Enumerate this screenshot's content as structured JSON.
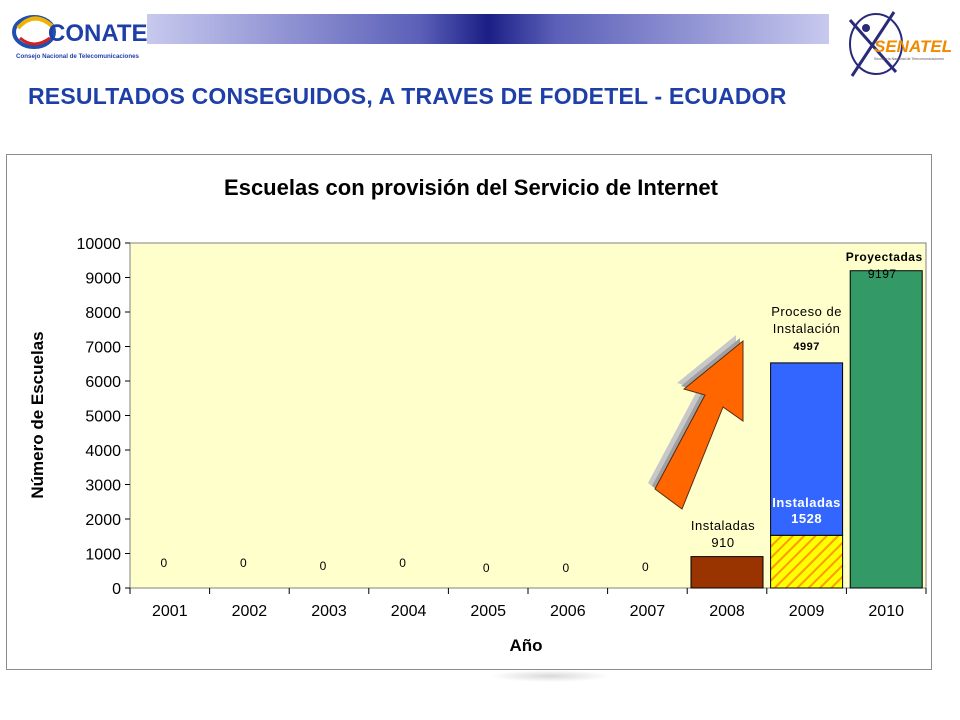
{
  "header": {
    "title": "RESULTADOS CONSEGUIDOS, A TRAVES DE FODETEL - ECUADOR",
    "logo_left": {
      "name": "CONATEL",
      "subtitle": "Consejo Nacional de Telecomunicaciones"
    },
    "logo_right": {
      "name": "SENATEL",
      "subtitle": "Secretaría Nacional de Telecomunicaciones"
    }
  },
  "colors": {
    "title": "#1f3fa8",
    "plot_bg": "#ffffcc",
    "bar_2008": "#993300",
    "bar_2009_proceso": "#3366ff",
    "bar_2009_instaladas_fill": "#ffff00",
    "bar_2009_instaladas_stripe": "#ff9900",
    "bar_2010": "#339966",
    "arrow": "#ff6600"
  },
  "chart_data": {
    "type": "bar",
    "stacked": true,
    "title": "Escuelas con provisión del Servicio de Internet",
    "xlabel": "Año",
    "ylabel": "Número de Escuelas",
    "ylim": [
      0,
      10000
    ],
    "yticks": [
      0,
      1000,
      2000,
      3000,
      4000,
      5000,
      6000,
      7000,
      8000,
      9000,
      10000
    ],
    "grid": false,
    "legend": "none",
    "categories": [
      "2001",
      "2002",
      "2003",
      "2004",
      "2005",
      "2006",
      "2007",
      "2008",
      "2009",
      "2010"
    ],
    "series": [
      {
        "name": "Instaladas",
        "values": [
          0,
          0,
          0,
          0,
          0,
          0,
          0,
          910,
          1528,
          0
        ]
      },
      {
        "name": "Proceso de Instalación",
        "values": [
          0,
          0,
          0,
          0,
          0,
          0,
          0,
          0,
          4997,
          0
        ]
      },
      {
        "name": "Proyectadas",
        "values": [
          0,
          0,
          0,
          0,
          0,
          0,
          0,
          0,
          0,
          9197
        ]
      }
    ],
    "zero_labels": [
      "0",
      "0",
      "0",
      "0",
      "0",
      "0",
      "0"
    ],
    "annotations": [
      {
        "category": "2008",
        "lines": [
          "Instaladas",
          "910"
        ]
      },
      {
        "category": "2009",
        "lines": [
          "Instaladas",
          "1528"
        ]
      },
      {
        "category": "2009",
        "lines": [
          "Proceso de",
          "Instalación",
          "4997"
        ]
      },
      {
        "category": "2010",
        "lines": [
          "Proyectadas",
          "9197"
        ]
      }
    ]
  }
}
